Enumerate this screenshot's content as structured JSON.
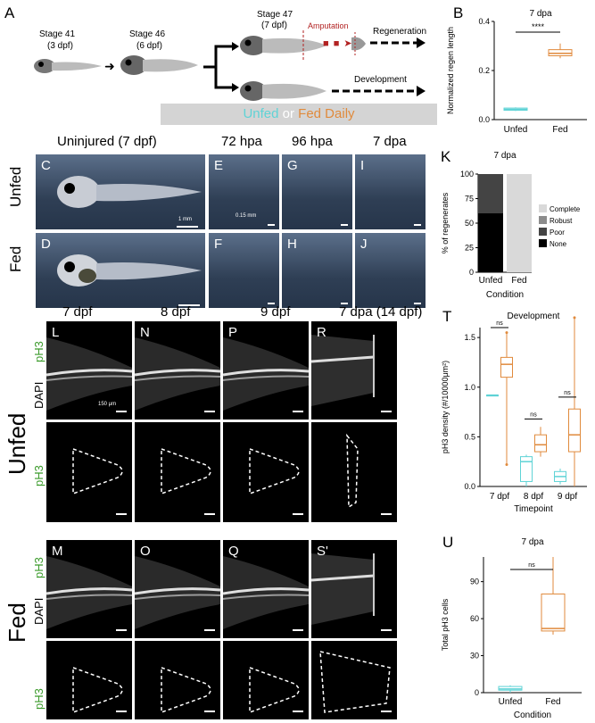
{
  "panels": {
    "A": "A",
    "B": "B",
    "C": "C",
    "D": "D",
    "E": "E",
    "F": "F",
    "G": "G",
    "H": "H",
    "I": "I",
    "J": "J",
    "K": "K",
    "L": "L",
    "M": "M",
    "N": "N",
    "O": "O",
    "P": "P",
    "Q": "Q",
    "R": "R",
    "S": "S'",
    "T": "T",
    "U": "U"
  },
  "schematic": {
    "stage41": "Stage 41",
    "stage41_sub": "(3 dpf)",
    "stage46": "Stage 46",
    "stage46_sub": "(6 dpf)",
    "stage47": "Stage 47",
    "stage47_sub": "(7 dpf)",
    "amputation": "Amputation",
    "regeneration": "Regeneration",
    "development": "Development",
    "legend_unfed": "Unfed",
    "legend_or": " or ",
    "legend_fed": "Fed Daily"
  },
  "colors": {
    "unfed": "#5fd3d6",
    "fed": "#e08a3c",
    "amputation": "#b22222",
    "banner": "#d4d4d4"
  },
  "bf_headers": {
    "uninjured": "Uninjured (7 dpf)",
    "h72": "72 hpa",
    "h96": "96 hpa",
    "dpa7": "7 dpa"
  },
  "bf_rows": {
    "unfed": "Unfed",
    "fed": "Fed"
  },
  "bf_scales": {
    "c": "1 mm",
    "e": "0.15 mm"
  },
  "fl_headers": {
    "c1": "7 dpf",
    "c2": "8 dpf",
    "c3": "9 dpf",
    "c4": "7 dpa (14 dpf)"
  },
  "fl_rows": {
    "unfed": "Unfed",
    "fed": "Fed",
    "ph3": "pH3",
    "dapi": "DAPI"
  },
  "fl_scale": "150 μm",
  "chart_data": [
    {
      "id": "B",
      "type": "box",
      "title": "7 dpa",
      "categories": [
        "Unfed",
        "Fed"
      ],
      "ylabel": "Normalized regen length",
      "xlabel": "",
      "ylim": [
        0,
        0.4
      ],
      "yticks": [
        "0.0",
        "0.2",
        "0.4"
      ],
      "boxes": [
        {
          "name": "Unfed",
          "q1": 0.038,
          "median": 0.042,
          "q3": 0.047,
          "min": 0.035,
          "max": 0.05
        },
        {
          "name": "Fed",
          "q1": 0.26,
          "median": 0.27,
          "q3": 0.285,
          "min": 0.25,
          "max": 0.31
        }
      ],
      "significance": "****"
    },
    {
      "id": "K",
      "type": "bar",
      "title": "7 dpa",
      "categories": [
        "Unfed",
        "Fed"
      ],
      "xlabel": "Condition",
      "ylabel": "% of regenerates",
      "ylim": [
        0,
        100
      ],
      "yticks": [
        "0",
        "25",
        "50",
        "75",
        "100"
      ],
      "series": [
        {
          "name": "Complete",
          "values": [
            0,
            100
          ],
          "color": "#d9d9d9"
        },
        {
          "name": "Robust",
          "values": [
            0,
            0
          ],
          "color": "#8c8c8c"
        },
        {
          "name": "Poor",
          "values": [
            40,
            0
          ],
          "color": "#444444"
        },
        {
          "name": "None",
          "values": [
            60,
            0
          ],
          "color": "#000000"
        }
      ]
    },
    {
      "id": "T",
      "type": "box",
      "title": "Development",
      "categories": [
        "7 dpf",
        "8 dpf",
        "9 dpf"
      ],
      "xlabel": "Timepoint",
      "ylabel": "pH3 density (#/10000μm²)",
      "ylim": [
        0,
        1.6
      ],
      "yticks": [
        "0.0",
        "0.5",
        "1.0",
        "1.5"
      ],
      "significance": [
        "ns",
        "ns",
        "ns"
      ],
      "boxes": [
        {
          "cat": "7 dpf",
          "name": "Unfed",
          "q1": 0.92,
          "median": 0.92,
          "q3": 0.92,
          "min": 0.92,
          "max": 0.92
        },
        {
          "cat": "7 dpf",
          "name": "Fed",
          "q1": 1.1,
          "median": 1.23,
          "q3": 1.3,
          "min": 0.22,
          "max": 1.55
        },
        {
          "cat": "8 dpf",
          "name": "Unfed",
          "q1": 0.05,
          "median": 0.25,
          "q3": 0.3,
          "min": 0.0,
          "max": 0.32
        },
        {
          "cat": "8 dpf",
          "name": "Fed",
          "q1": 0.35,
          "median": 0.42,
          "q3": 0.52,
          "min": 0.3,
          "max": 0.6
        },
        {
          "cat": "9 dpf",
          "name": "Unfed",
          "q1": 0.05,
          "median": 0.1,
          "q3": 0.15,
          "min": 0.02,
          "max": 0.18
        },
        {
          "cat": "9 dpf",
          "name": "Fed",
          "q1": 0.35,
          "median": 0.52,
          "q3": 0.78,
          "min": 0.0,
          "max": 1.7
        }
      ]
    },
    {
      "id": "U",
      "type": "box",
      "title": "7 dpa",
      "categories": [
        "Unfed",
        "Fed"
      ],
      "xlabel": "Condition",
      "ylabel": "Total pH3 cells",
      "ylim": [
        0,
        110
      ],
      "yticks": [
        "0",
        "30",
        "60",
        "90"
      ],
      "significance": "ns",
      "boxes": [
        {
          "name": "Unfed",
          "q1": 2,
          "median": 3,
          "q3": 5,
          "min": 0,
          "max": 6
        },
        {
          "name": "Fed",
          "q1": 50,
          "median": 52,
          "q3": 80,
          "min": 47,
          "max": 110
        }
      ]
    }
  ]
}
